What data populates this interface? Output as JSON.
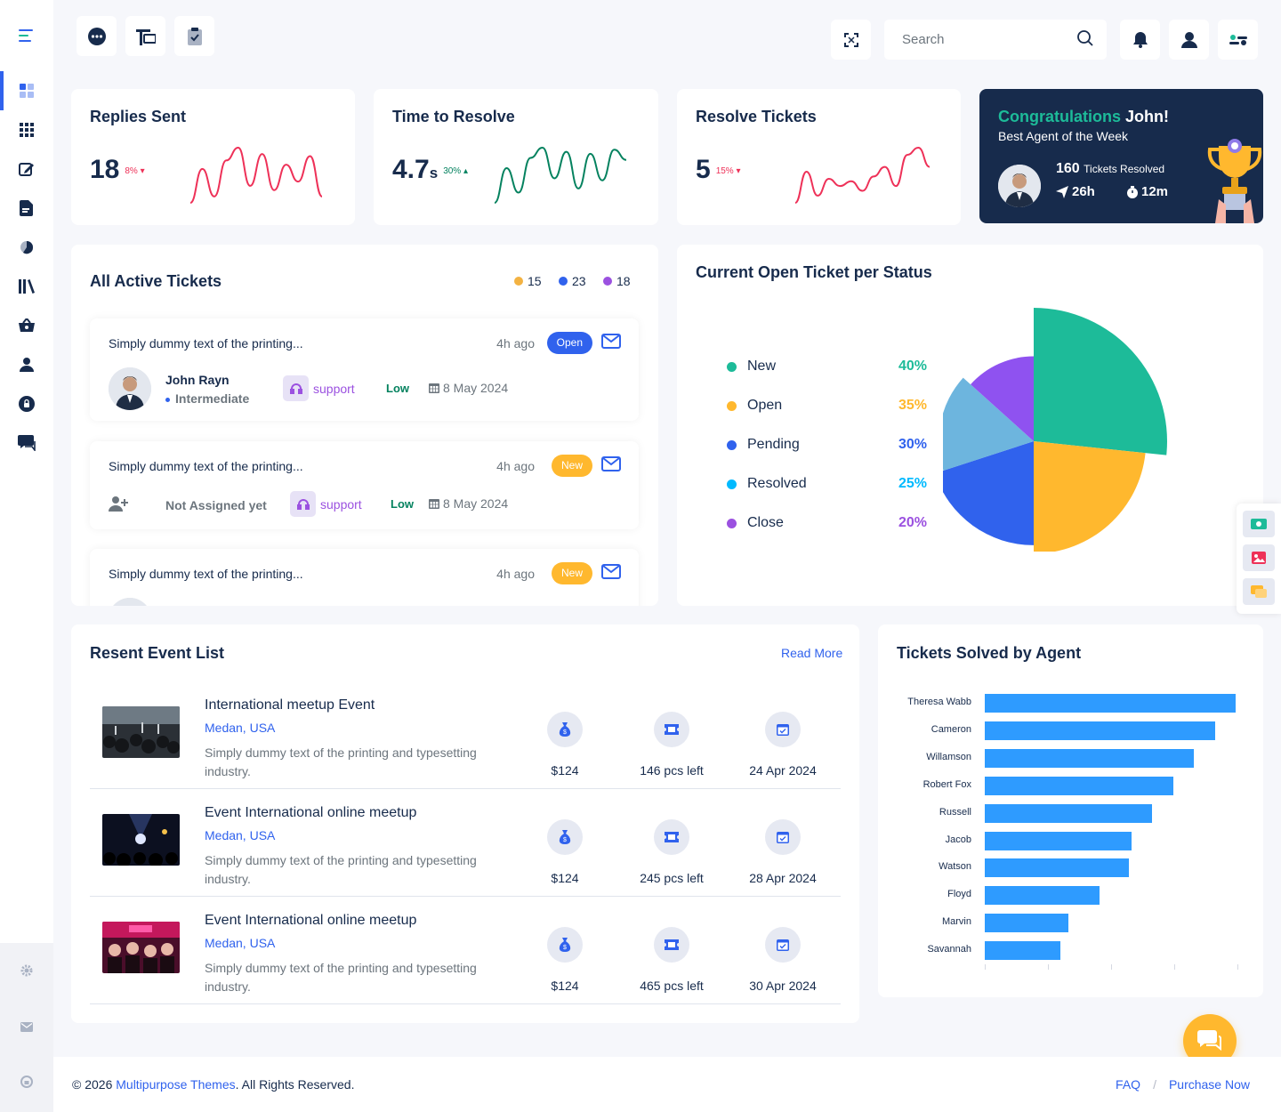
{
  "search": {
    "placeholder": "Search"
  },
  "kpis": [
    {
      "title": "Replies Sent",
      "value": "18",
      "unit": "",
      "pct": "8%",
      "trend": "down",
      "color": "#ee3158"
    },
    {
      "title": "Time to Resolve",
      "value": "4.7",
      "unit": "s",
      "pct": "30%",
      "trend": "up",
      "color": "#05825f"
    },
    {
      "title": "Resolve Tickets",
      "value": "5",
      "unit": "",
      "pct": "15%",
      "trend": "down",
      "color": "#ee3158"
    }
  ],
  "congrats": {
    "title_green": "Congratulations",
    "title_name": "John!",
    "subtitle": "Best Agent of the Week",
    "count": "160",
    "count_label": "Tickets Resolved",
    "m1": "26h",
    "m2": "12m"
  },
  "tickets": {
    "title": "All Active Tickets",
    "counts": [
      {
        "value": "15",
        "color": "#f3b242"
      },
      {
        "value": "23",
        "color": "#3062ed"
      },
      {
        "value": "18",
        "color": "#9b51e0"
      }
    ],
    "items": [
      {
        "text": "Simply dummy text of the printing...",
        "ago": "4h ago",
        "status": "Open",
        "assignee": "John Rayn",
        "level": "Intermediate",
        "type": "support",
        "priority": "Low",
        "date": "8 May 2024"
      },
      {
        "text": "Simply dummy text of the printing...",
        "ago": "4h ago",
        "status": "New",
        "assignee": "Not Assigned yet",
        "type": "support",
        "priority": "Low",
        "date": "8 May 2024"
      },
      {
        "text": "Simply dummy text of the printing...",
        "ago": "4h ago",
        "status": "New"
      }
    ]
  },
  "pie": {
    "title": "Current Open Ticket per Status",
    "items": [
      {
        "label": "New",
        "value": "40%",
        "color": "#1dbb99"
      },
      {
        "label": "Open",
        "value": "35%",
        "color": "#ffb82e"
      },
      {
        "label": "Pending",
        "value": "30%",
        "color": "#3062ed"
      },
      {
        "label": "Resolved",
        "value": "25%",
        "color": "#00baff"
      },
      {
        "label": "Close",
        "value": "20%",
        "color": "#9b51e0"
      }
    ]
  },
  "events": {
    "title": "Resent Event List",
    "read_more": "Read More",
    "items": [
      {
        "title": "International meetup Event",
        "location": "Medan, USA",
        "desc": "Simply dummy text of the printing and typesetting industry.",
        "price": "$124",
        "left": "146 pcs left",
        "date": "24 Apr 2024"
      },
      {
        "title": "Event International online meetup",
        "location": "Medan, USA",
        "desc": "Simply dummy text of the printing and typesetting industry.",
        "price": "$124",
        "left": "245 pcs left",
        "date": "28 Apr 2024"
      },
      {
        "title": "Event International online meetup",
        "location": "Medan, USA",
        "desc": "Simply dummy text of the printing and typesetting industry.",
        "price": "$124",
        "left": "465 pcs left",
        "date": "30 Apr 2024"
      }
    ]
  },
  "agents_title": "Tickets Solved by Agent",
  "chart_data": [
    {
      "type": "line",
      "title": "Replies Sent",
      "values": [
        2,
        18,
        5,
        22,
        28,
        10,
        25,
        8,
        20,
        12,
        24,
        5
      ]
    },
    {
      "type": "line",
      "title": "Time to Resolve",
      "values": [
        3,
        20,
        8,
        25,
        30,
        15,
        28,
        10,
        27,
        14,
        29,
        24
      ]
    },
    {
      "type": "line",
      "title": "Resolve Tickets",
      "values": [
        5,
        18,
        8,
        15,
        12,
        14,
        10,
        16,
        20,
        12,
        25,
        28,
        20
      ]
    },
    {
      "type": "pie",
      "title": "Current Open Ticket per Status",
      "labels": [
        "New",
        "Open",
        "Pending",
        "Resolved",
        "Close"
      ],
      "values": [
        40,
        35,
        30,
        25,
        20
      ]
    },
    {
      "type": "bar",
      "title": "Tickets Solved by Agent",
      "orientation": "horizontal",
      "categories": [
        "Theresa Wabb",
        "Cameron",
        "Willamson",
        "Robert Fox",
        "Russell",
        "Jacob",
        "Watson",
        "Floyd",
        "Marvin",
        "Savannah"
      ],
      "values": [
        1200,
        1100,
        1000,
        900,
        800,
        700,
        690,
        550,
        400,
        360
      ],
      "xlim": [
        0,
        1200
      ],
      "color": "#2e9bff"
    }
  ],
  "footer": {
    "year": "© 2026 ",
    "brand": "Multipurpose Themes",
    "rights": ". All Rights Reserved.",
    "faq": "FAQ",
    "sep": "/",
    "purchase": "Purchase Now"
  }
}
